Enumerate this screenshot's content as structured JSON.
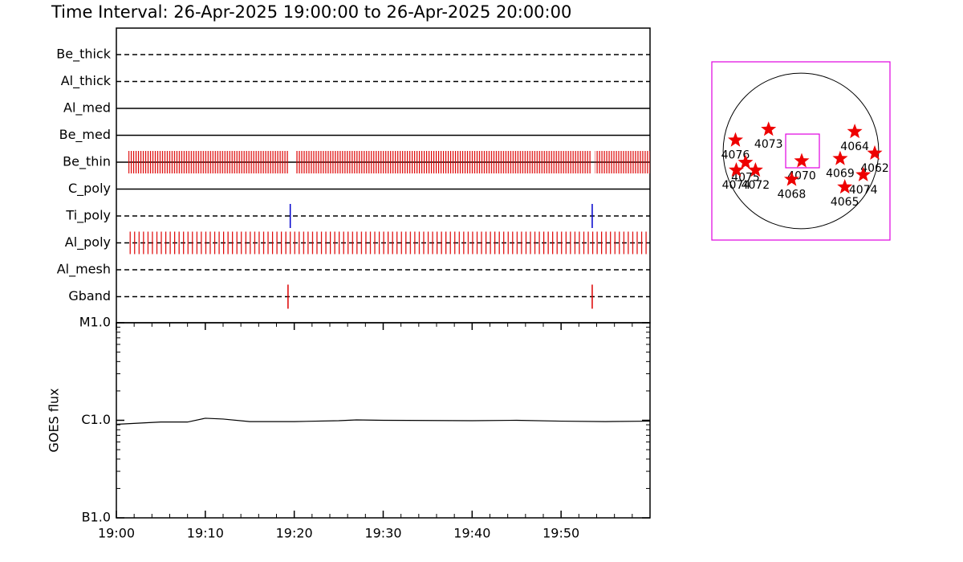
{
  "chart_data": [
    {
      "type": "timeline",
      "title": "Time Interval: 26-Apr-2025 19:00:00 to 26-Apr-2025 20:00:00",
      "xlim": [
        0,
        60
      ],
      "xticks": [
        {
          "value": 0,
          "label": "19:00"
        },
        {
          "value": 10,
          "label": "19:10"
        },
        {
          "value": 20,
          "label": "19:20"
        },
        {
          "value": 30,
          "label": "19:30"
        },
        {
          "value": 40,
          "label": "19:40"
        },
        {
          "value": 50,
          "label": "19:50"
        }
      ],
      "filters": [
        {
          "name": "Be_thick",
          "line": "dashed"
        },
        {
          "name": "Al_thick",
          "line": "dashed"
        },
        {
          "name": "Al_med",
          "line": "solid"
        },
        {
          "name": "Be_med",
          "line": "solid"
        },
        {
          "name": "Be_thin",
          "line": "solid",
          "color": "#dd0000",
          "cadence": 0.27,
          "spans": [
            [
              1.36,
              19.4
            ],
            [
              20.2,
              53.4
            ],
            [
              53.8,
              60
            ]
          ]
        },
        {
          "name": "C_poly",
          "line": "solid"
        },
        {
          "name": "Ti_poly",
          "line": "dashed",
          "color": "#0000cc",
          "times": [
            19.55,
            53.5
          ]
        },
        {
          "name": "Al_poly",
          "line": "dashed",
          "color": "#dd0000",
          "cadence": 0.5,
          "spans": [
            [
              1.36,
              59.8
            ]
          ]
        },
        {
          "name": "Al_mesh",
          "line": "dashed"
        },
        {
          "name": "Gband",
          "line": "dashed",
          "color": "#dd0000",
          "times": [
            19.3,
            53.5
          ]
        }
      ]
    },
    {
      "type": "line",
      "log_scale": true,
      "ylabel": "GOES flux",
      "ylim": [
        1e-07,
        1e-05
      ],
      "yticks": [
        {
          "value": 1e-07,
          "label": "B1.0"
        },
        {
          "value": 1e-06,
          "label": "C1.0"
        },
        {
          "value": 1e-05,
          "label": "M1.0"
        }
      ],
      "x": [
        0,
        5,
        8,
        10,
        12,
        15,
        20,
        25,
        27,
        30,
        40,
        45,
        50,
        55,
        60
      ],
      "series": [
        {
          "color": "#000000",
          "values": [
            9.1e-07,
            9.6e-07,
            9.6e-07,
            1.05e-06,
            1.03e-06,
            9.7e-07,
            9.7e-07,
            9.9e-07,
            1.01e-06,
            1e-06,
            9.9e-07,
            1e-06,
            9.8e-07,
            9.7e-07,
            9.8e-07
          ]
        }
      ]
    },
    {
      "type": "map",
      "xlim": [
        -1100,
        1100
      ],
      "ylim": [
        -1100,
        1100
      ],
      "solar_radius": 960,
      "fov": {
        "x": 20,
        "y": 0,
        "width": 416,
        "height": 416
      },
      "regions": [
        {
          "label": "4076",
          "x": -808,
          "y": 133
        },
        {
          "label": "4073",
          "x": -399,
          "y": 266
        },
        {
          "label": "4064",
          "x": 665,
          "y": 238
        },
        {
          "label": "4062",
          "x": 912,
          "y": -29
        },
        {
          "label": "4069",
          "x": 485,
          "y": -95
        },
        {
          "label": "4070",
          "x": 10,
          "y": -124
        },
        {
          "label": "4068",
          "x": -114,
          "y": -352
        },
        {
          "label": "4065",
          "x": 542,
          "y": -446
        },
        {
          "label": "4074",
          "x": 770,
          "y": -295
        },
        {
          "label": "4075",
          "x": -684,
          "y": -143
        },
        {
          "label": "4072",
          "x": -561,
          "y": -238
        },
        {
          "label": "4074",
          "x": -798,
          "y": -238
        }
      ]
    }
  ]
}
